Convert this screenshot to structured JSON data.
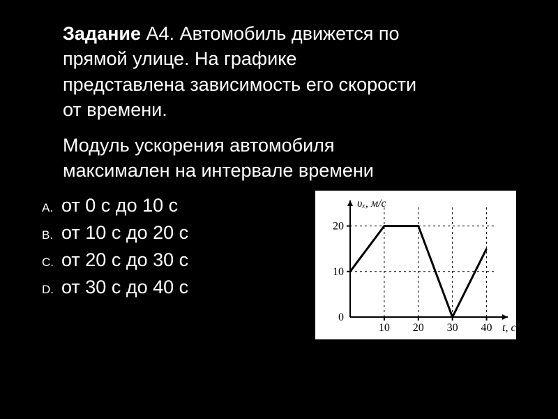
{
  "task_label": "Задание",
  "task_id": "А4.",
  "question_part1": "Автомобиль движется   по ",
  "question_line2": " прямой   улице.    На  графике   ",
  "question_line3": "представлена зависимость его скорости ",
  "question_line4": "от времени.",
  "prompt_line1": "Модуль ускорения  автомобиля ",
  "prompt_line2": "максимален   на   интервале времени",
  "options": [
    {
      "letter": "A.",
      "text": "от 0 с до 10 с"
    },
    {
      "letter": "B.",
      "text": "от 10 с до 20 с"
    },
    {
      "letter": "C.",
      "text": "от 20 с до 30 с"
    },
    {
      "letter": "D.",
      "text": "от 30 с до 40 с"
    }
  ],
  "chart": {
    "type": "line",
    "y_label": "υₓ, м/с",
    "x_label": "t, с",
    "x_ticks": [
      10,
      20,
      30,
      40
    ],
    "y_ticks": [
      0,
      10,
      20
    ],
    "points": [
      {
        "t": 0,
        "v": 10
      },
      {
        "t": 10,
        "v": 20
      },
      {
        "t": 20,
        "v": 20
      },
      {
        "t": 30,
        "v": 0
      },
      {
        "t": 40,
        "v": 15
      }
    ],
    "xlim": [
      0,
      45
    ],
    "ylim": [
      0,
      25
    ],
    "background_color": "#ffffff",
    "axis_color": "#000000",
    "line_color": "#000000",
    "line_width": 3,
    "tick_font_size": 16,
    "label_font_size": 16
  }
}
